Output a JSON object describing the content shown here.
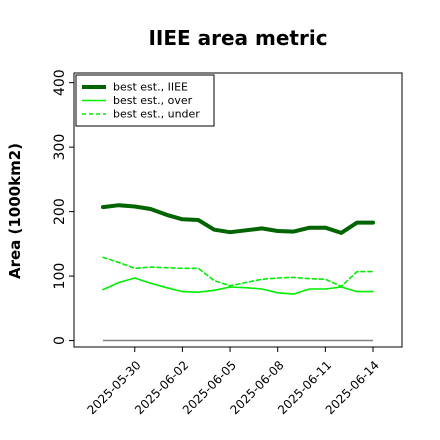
{
  "chart_data": {
    "type": "line",
    "title": "IIEE area metric",
    "xlabel": "",
    "ylabel": "Area (1000km2)",
    "ylim": [
      -10,
      415
    ],
    "yticks": [
      0,
      100,
      200,
      300,
      400
    ],
    "xtick_labels": [
      "2025-05-30",
      "2025-06-02",
      "2025-06-05",
      "2025-06-08",
      "2025-06-11",
      "2025-06-14"
    ],
    "x": [
      "2025-05-28",
      "2025-05-29",
      "2025-05-30",
      "2025-05-31",
      "2025-06-01",
      "2025-06-02",
      "2025-06-03",
      "2025-06-04",
      "2025-06-05",
      "2025-06-06",
      "2025-06-07",
      "2025-06-08",
      "2025-06-09",
      "2025-06-10",
      "2025-06-11",
      "2025-06-12",
      "2025-06-13",
      "2025-06-14"
    ],
    "series": [
      {
        "name": "best est., IIEE",
        "color": "#006400",
        "style": "solid",
        "width": "thick",
        "values": [
          207,
          210,
          208,
          204,
          195,
          188,
          187,
          172,
          168,
          171,
          174,
          170,
          169,
          175,
          175,
          167,
          183,
          183
        ]
      },
      {
        "name": "best est., over",
        "color": "#00ee00",
        "style": "solid",
        "width": "normal",
        "values": [
          79,
          90,
          97,
          89,
          82,
          76,
          75,
          78,
          83,
          82,
          80,
          74,
          72,
          80,
          80,
          83,
          76,
          76
        ]
      },
      {
        "name": "best est., under",
        "color": "#00ee00",
        "style": "dashed",
        "width": "normal",
        "values": [
          129,
          121,
          112,
          114,
          113,
          112,
          112,
          93,
          85,
          90,
          95,
          97,
          98,
          96,
          95,
          84,
          107,
          107
        ]
      }
    ],
    "reference_line": {
      "value": 0,
      "color": "#808080"
    },
    "legend": "upper-left",
    "grid": false
  }
}
